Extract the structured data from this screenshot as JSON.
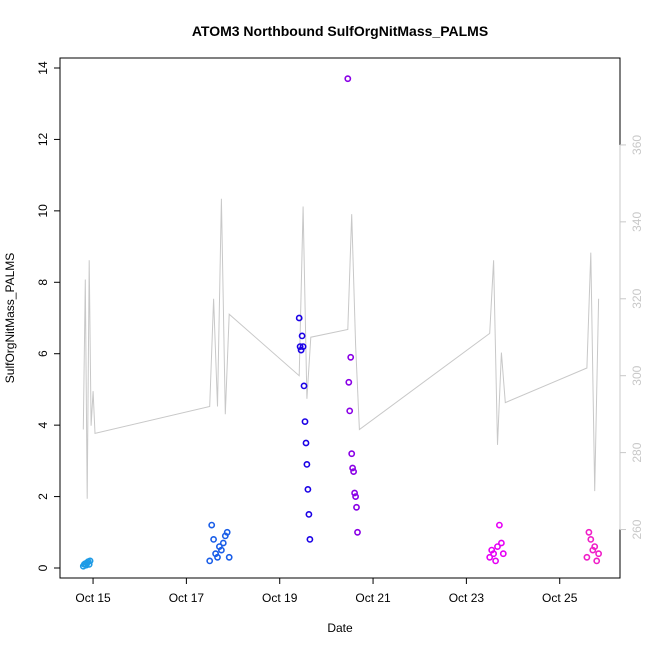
{
  "chart_data": {
    "type": "scatter",
    "title": "ATOM3 Northbound SulfOrgNitMass_PALMS",
    "xlabel": "Date",
    "ylabel": "SulfOrgNitMass_PALMS",
    "x_ticks": [
      "Oct 15",
      "Oct 17",
      "Oct 19",
      "Oct 21",
      "Oct 23",
      "Oct 25"
    ],
    "x_tick_dates": [
      "2017-10-15",
      "2017-10-17",
      "2017-10-19",
      "2017-10-21",
      "2017-10-23",
      "2017-10-25"
    ],
    "xlim": [
      "2017-10-14 07:00",
      "2017-10-26 07:00"
    ],
    "ylim": [
      0,
      14
    ],
    "y_ticks": [
      0,
      2,
      4,
      6,
      8,
      10,
      12,
      14
    ],
    "y2lim": [
      250,
      380
    ],
    "y2_ticks": [
      260,
      280,
      300,
      320,
      340,
      360
    ],
    "grid": false,
    "legend": "none",
    "colors": {
      "background_line": "#c8c8c8",
      "right_axis": "#c8c8c8",
      "flight_1": "#1e9be6",
      "flight_2": "#1a5ee8",
      "flight_3": "#1a00e6",
      "flight_4": "#8a00e6",
      "flight_5": "#e600f5",
      "flight_6": "#f01ec8"
    },
    "series": [
      {
        "color": "#1e9be6",
        "x": [
          "2017-10-14 19:00",
          "2017-10-14 19:30",
          "2017-10-14 20:00",
          "2017-10-14 20:30",
          "2017-10-14 21:00",
          "2017-10-14 21:30",
          "2017-10-14 22:00",
          "2017-10-14 22:30"
        ],
        "y": [
          0.05,
          0.1,
          0.12,
          0.08,
          0.15,
          0.18,
          0.1,
          0.2
        ]
      },
      {
        "color": "#1a5ee8",
        "x": [
          "2017-10-17 12:00",
          "2017-10-17 13:00",
          "2017-10-17 14:00",
          "2017-10-17 15:00",
          "2017-10-17 16:00",
          "2017-10-17 17:00",
          "2017-10-17 18:00",
          "2017-10-17 19:00",
          "2017-10-17 20:00",
          "2017-10-17 21:00",
          "2017-10-17 22:00"
        ],
        "y": [
          0.2,
          1.2,
          0.8,
          0.4,
          0.3,
          0.6,
          0.5,
          0.7,
          0.9,
          1.0,
          0.3
        ]
      },
      {
        "color": "#1a00e6",
        "x": [
          "2017-10-19 10:00",
          "2017-10-19 10:30",
          "2017-10-19 11:00",
          "2017-10-19 11:30",
          "2017-10-19 12:00",
          "2017-10-19 12:30",
          "2017-10-19 13:00",
          "2017-10-19 13:30",
          "2017-10-19 14:00",
          "2017-10-19 14:30",
          "2017-10-19 15:00",
          "2017-10-19 15:30"
        ],
        "y": [
          7.0,
          6.2,
          6.1,
          6.5,
          6.2,
          5.1,
          4.1,
          3.5,
          2.9,
          2.2,
          1.5,
          0.8
        ]
      },
      {
        "color": "#8a00e6",
        "x": [
          "2017-10-20 11:00",
          "2017-10-20 11:30",
          "2017-10-20 12:00",
          "2017-10-20 12:30",
          "2017-10-20 13:00",
          "2017-10-20 13:30",
          "2017-10-20 14:00",
          "2017-10-20 14:30",
          "2017-10-20 15:00",
          "2017-10-20 15:30",
          "2017-10-20 16:00"
        ],
        "y": [
          13.7,
          5.2,
          4.4,
          5.9,
          3.2,
          2.8,
          2.7,
          2.1,
          2.0,
          1.7,
          1.0
        ]
      },
      {
        "color": "#e600f5",
        "x": [
          "2017-10-23 12:00",
          "2017-10-23 13:00",
          "2017-10-23 14:00",
          "2017-10-23 15:00",
          "2017-10-23 16:00",
          "2017-10-23 17:00",
          "2017-10-23 18:00",
          "2017-10-23 19:00"
        ],
        "y": [
          0.3,
          0.5,
          0.4,
          0.2,
          0.6,
          1.2,
          0.7,
          0.4
        ]
      },
      {
        "color": "#f01ec8",
        "x": [
          "2017-10-25 14:00",
          "2017-10-25 15:00",
          "2017-10-25 16:00",
          "2017-10-25 17:00",
          "2017-10-25 18:00",
          "2017-10-25 19:00",
          "2017-10-25 20:00"
        ],
        "y": [
          0.3,
          1.0,
          0.8,
          0.5,
          0.6,
          0.2,
          0.4
        ]
      }
    ],
    "background_line": {
      "axis": "right",
      "x": [
        "2017-10-14 19:00",
        "2017-10-14 20:00",
        "2017-10-14 21:00",
        "2017-10-14 22:00",
        "2017-10-14 23:00",
        "2017-10-15 00:00",
        "2017-10-15 01:00",
        "2017-10-17 12:00",
        "2017-10-17 14:00",
        "2017-10-17 16:00",
        "2017-10-17 18:00",
        "2017-10-17 20:00",
        "2017-10-17 22:00",
        "2017-10-19 10:00",
        "2017-10-19 12:00",
        "2017-10-19 14:00",
        "2017-10-19 16:00",
        "2017-10-20 11:00",
        "2017-10-20 13:00",
        "2017-10-20 15:00",
        "2017-10-20 17:00",
        "2017-10-23 12:00",
        "2017-10-23 14:00",
        "2017-10-23 16:00",
        "2017-10-23 18:00",
        "2017-10-23 20:00",
        "2017-10-25 14:00",
        "2017-10-25 16:00",
        "2017-10-25 18:00",
        "2017-10-25 20:00"
      ],
      "y": [
        286,
        325,
        268,
        330,
        287,
        296,
        285,
        292,
        320,
        292,
        346,
        290,
        316,
        300,
        344,
        294,
        310,
        312,
        342,
        308,
        286,
        311,
        330,
        282,
        306,
        293,
        302,
        332,
        270,
        320
      ]
    }
  }
}
